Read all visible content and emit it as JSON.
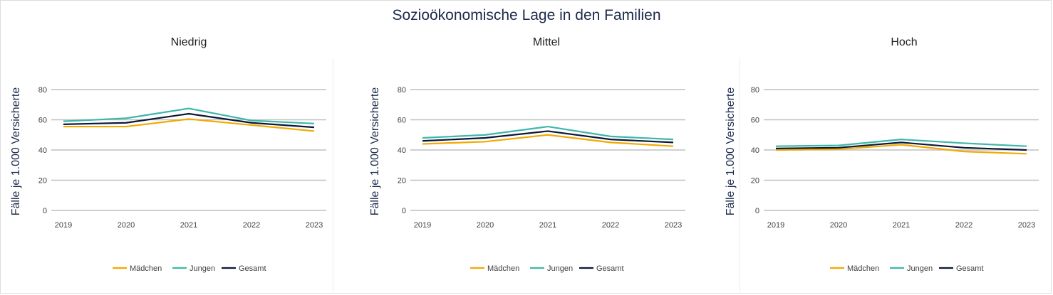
{
  "title": "Sozioökonomische Lage in den Familien",
  "colors": {
    "Mädchen": "#f2a900",
    "Jungen": "#3db7a9",
    "Gesamt": "#0b1738"
  },
  "chart_data": [
    {
      "type": "line",
      "title": "Niedrig",
      "ylabel": "Fälle je 1.000 Versicherte",
      "xlabel": "",
      "x": [
        "2019",
        "2020",
        "2021",
        "2022",
        "2023"
      ],
      "ylim": [
        0,
        80
      ],
      "yticks": [
        0,
        20,
        40,
        60,
        80
      ],
      "grid": true,
      "legend": "bottom",
      "series": [
        {
          "name": "Mädchen",
          "values": [
            55.5,
            55.5,
            60.5,
            56.5,
            52.5
          ]
        },
        {
          "name": "Jungen",
          "values": [
            59,
            61,
            67.5,
            59.5,
            57.5
          ]
        },
        {
          "name": "Gesamt",
          "values": [
            57,
            58,
            64,
            58,
            55
          ]
        }
      ]
    },
    {
      "type": "line",
      "title": "Mittel",
      "ylabel": "Fälle je 1.000 Versicherte",
      "xlabel": "",
      "x": [
        "2019",
        "2020",
        "2021",
        "2022",
        "2023"
      ],
      "ylim": [
        0,
        80
      ],
      "yticks": [
        0,
        20,
        40,
        60,
        80
      ],
      "grid": true,
      "legend": "bottom",
      "series": [
        {
          "name": "Mädchen",
          "values": [
            44,
            45.5,
            50,
            45,
            42.5
          ]
        },
        {
          "name": "Jungen",
          "values": [
            48,
            50,
            55.5,
            49,
            47
          ]
        },
        {
          "name": "Gesamt",
          "values": [
            46,
            48,
            52.5,
            47,
            45
          ]
        }
      ]
    },
    {
      "type": "line",
      "title": "Hoch",
      "ylabel": "Fälle je 1.000 Versicherte",
      "xlabel": "",
      "x": [
        "2019",
        "2020",
        "2021",
        "2022",
        "2023"
      ],
      "ylim": [
        0,
        80
      ],
      "yticks": [
        0,
        20,
        40,
        60,
        80
      ],
      "grid": true,
      "legend": "bottom",
      "series": [
        {
          "name": "Mädchen",
          "values": [
            40,
            40.5,
            43.5,
            39,
            37.5
          ]
        },
        {
          "name": "Jungen",
          "values": [
            42.5,
            43,
            47,
            44.5,
            42.5
          ]
        },
        {
          "name": "Gesamt",
          "values": [
            41,
            41.5,
            45,
            41.5,
            40
          ]
        }
      ]
    }
  ]
}
